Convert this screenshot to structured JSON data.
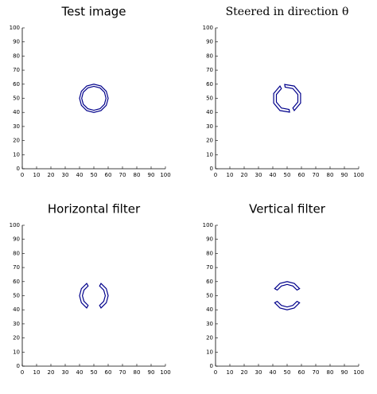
{
  "chart_data": [
    {
      "type": "contour",
      "title": "Test image",
      "color": "#00008b",
      "xlim": [
        0,
        100
      ],
      "ylim": [
        0,
        100
      ],
      "xticks": [
        0,
        10,
        20,
        30,
        40,
        50,
        60,
        70,
        80,
        90,
        100
      ],
      "yticks": [
        0,
        10,
        20,
        30,
        40,
        50,
        60,
        70,
        80,
        90,
        100
      ],
      "contours": [
        {
          "x": [
            60,
            58.7,
            55,
            50,
            45,
            41.3,
            40,
            41.3,
            45,
            50,
            55,
            58.7
          ],
          "y": [
            50,
            55,
            58.7,
            60,
            58.7,
            55,
            50,
            45,
            41.3,
            40,
            41.3,
            45
          ]
        },
        {
          "x": [
            58.5,
            57.4,
            54.3,
            50,
            45.8,
            42.6,
            41.5,
            42.6,
            45.8,
            50,
            54.3,
            57.4
          ],
          "y": [
            50,
            54.3,
            57.4,
            58.5,
            57.4,
            54.3,
            50,
            45.8,
            42.6,
            41.5,
            42.6,
            45.8
          ]
        }
      ]
    },
    {
      "type": "contour",
      "title": "Steered in direction θ",
      "color": "#00008b",
      "xlim": [
        0,
        100
      ],
      "ylim": [
        0,
        100
      ],
      "xticks": [
        0,
        10,
        20,
        30,
        40,
        50,
        60,
        70,
        80,
        90,
        100
      ],
      "yticks": [
        0,
        10,
        20,
        30,
        40,
        50,
        60,
        70,
        80,
        90,
        100
      ],
      "contours": [
        {
          "x": [
            55,
            59.4,
            59.4,
            55,
            48.3,
            48.6,
            54,
            57.5,
            57.5,
            54
          ],
          "y": [
            41.3,
            46.6,
            53.4,
            58.7,
            59.8,
            57.9,
            56.9,
            52.7,
            47.3,
            43.1
          ]
        },
        {
          "x": [
            45,
            40.6,
            40.6,
            45,
            51.7,
            51.4,
            46,
            42.5,
            42.5,
            46
          ],
          "y": [
            58.7,
            53.4,
            46.6,
            41.3,
            40.2,
            42.1,
            43.1,
            47.3,
            52.7,
            56.9
          ]
        }
      ]
    },
    {
      "type": "contour",
      "title": "Horizontal filter",
      "color": "#00008b",
      "xlim": [
        0,
        100
      ],
      "ylim": [
        0,
        100
      ],
      "xticks": [
        0,
        10,
        20,
        30,
        40,
        50,
        60,
        70,
        80,
        90,
        100
      ],
      "yticks": [
        0,
        10,
        20,
        30,
        40,
        50,
        60,
        70,
        80,
        90,
        100
      ],
      "contours": [
        {
          "x": [
            55,
            58.7,
            60,
            58.7,
            55,
            54,
            56.9,
            58,
            56.9,
            54
          ],
          "y": [
            41.3,
            45,
            50,
            55,
            58.7,
            56.9,
            54,
            50,
            46,
            43.1
          ]
        },
        {
          "x": [
            45,
            41.3,
            40,
            41.3,
            45,
            46,
            43.1,
            42,
            43.1,
            46
          ],
          "y": [
            41.3,
            45,
            50,
            55,
            58.7,
            56.9,
            54,
            50,
            46,
            43.1
          ]
        }
      ]
    },
    {
      "type": "contour",
      "title": "Vertical filter",
      "color": "#00008b",
      "xlim": [
        0,
        100
      ],
      "ylim": [
        0,
        100
      ],
      "xticks": [
        0,
        10,
        20,
        30,
        40,
        50,
        60,
        70,
        80,
        90,
        100
      ],
      "yticks": [
        0,
        10,
        20,
        30,
        40,
        50,
        60,
        70,
        80,
        90,
        100
      ],
      "contours": [
        {
          "x": [
            58.7,
            55,
            50,
            45,
            41.3,
            43.1,
            46,
            50,
            54,
            56.9
          ],
          "y": [
            55,
            58.7,
            60,
            58.7,
            55,
            54,
            56.9,
            58,
            56.9,
            54
          ]
        },
        {
          "x": [
            58.7,
            55,
            50,
            45,
            41.3,
            43.1,
            46,
            50,
            54,
            56.9
          ],
          "y": [
            45,
            41.3,
            40,
            41.3,
            45,
            46,
            43.1,
            42,
            43.1,
            46
          ]
        }
      ]
    }
  ]
}
